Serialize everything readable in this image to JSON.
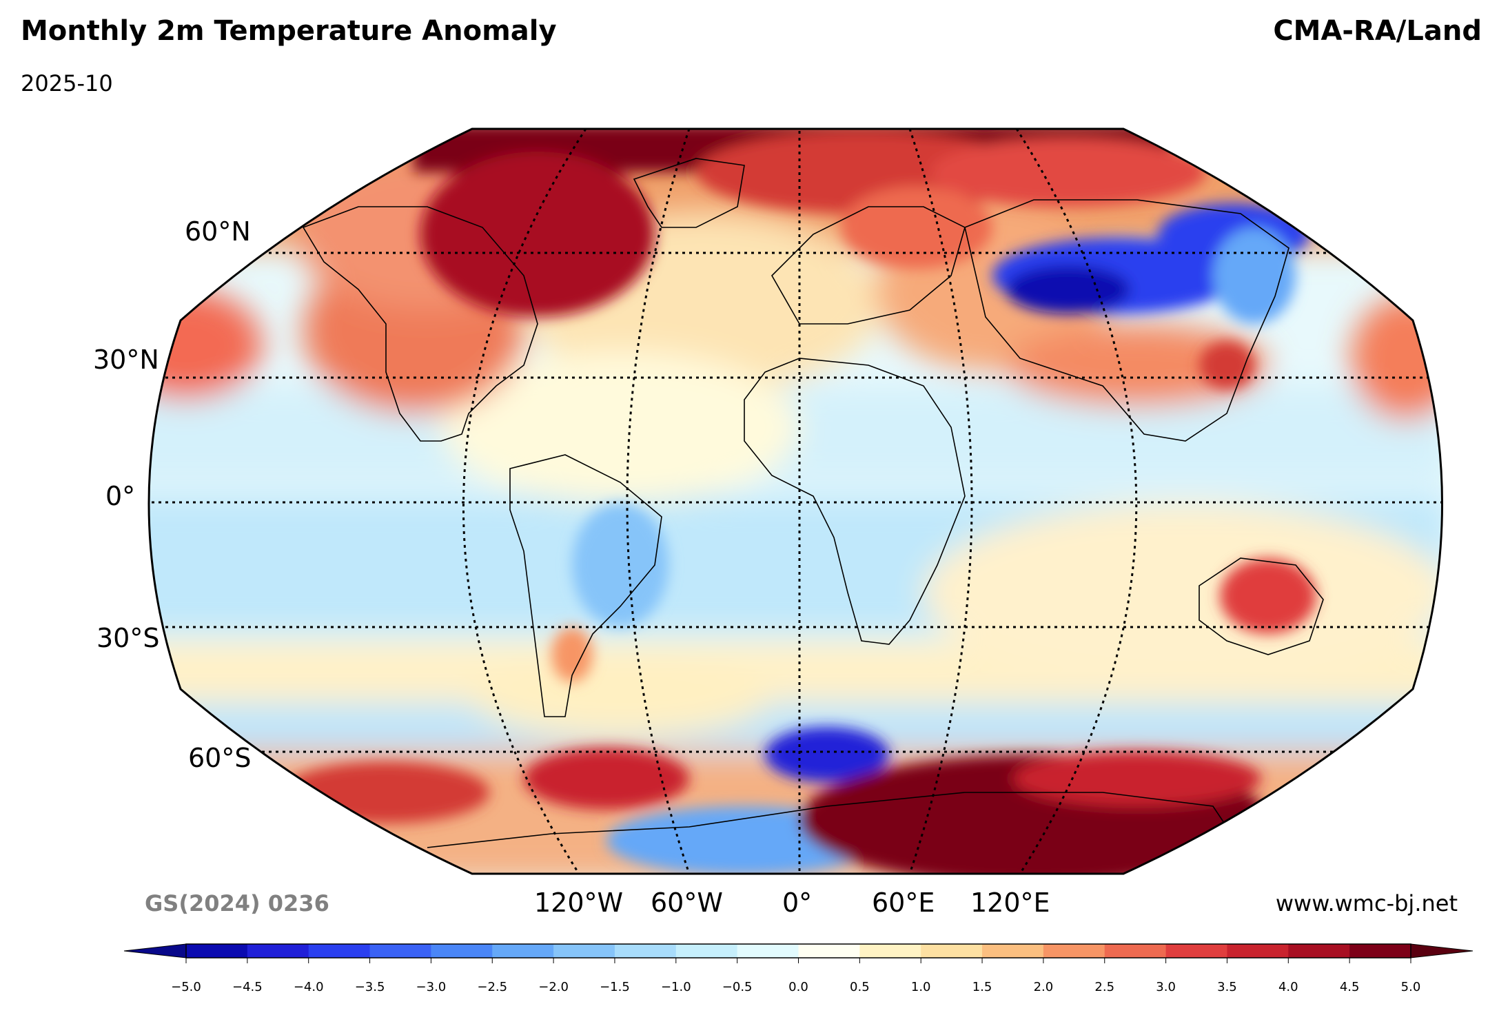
{
  "header": {
    "title": "Monthly 2m Temperature Anomaly",
    "date": "2025-10",
    "source": "CMA-RA/Land"
  },
  "footer": {
    "map_approval": "GS(2024) 0236",
    "website": "www.wmc-bj.net"
  },
  "map": {
    "projection": "Robinson",
    "lat_labels": [
      "60°N",
      "30°N",
      "0°",
      "30°S",
      "60°S"
    ],
    "lon_labels": [
      "120°W",
      "60°W",
      "0°",
      "60°E",
      "120°E"
    ]
  },
  "colorbar": {
    "ticks": [
      "−5.0",
      "−4.5",
      "−4.0",
      "−3.5",
      "−3.0",
      "−2.5",
      "−2.0",
      "−1.5",
      "−1.0",
      "−0.5",
      "0.0",
      "0.5",
      "1.0",
      "1.5",
      "2.0",
      "2.5",
      "3.0",
      "3.5",
      "4.0",
      "4.5",
      "5.0"
    ],
    "colors": [
      "#0b0bb0",
      "#2020d8",
      "#2a3fef",
      "#3a62f5",
      "#4a86f7",
      "#65a8f8",
      "#86c4f9",
      "#a8dcfb",
      "#c6effc",
      "#e2fbfe",
      "#fffff2",
      "#fff3c4",
      "#fde0a2",
      "#fbbf80",
      "#f79565",
      "#ee6a50",
      "#e03e3e",
      "#c9232e",
      "#a80f22",
      "#7d0018"
    ],
    "under_color": "#08088a",
    "over_color": "#5a0010"
  }
}
